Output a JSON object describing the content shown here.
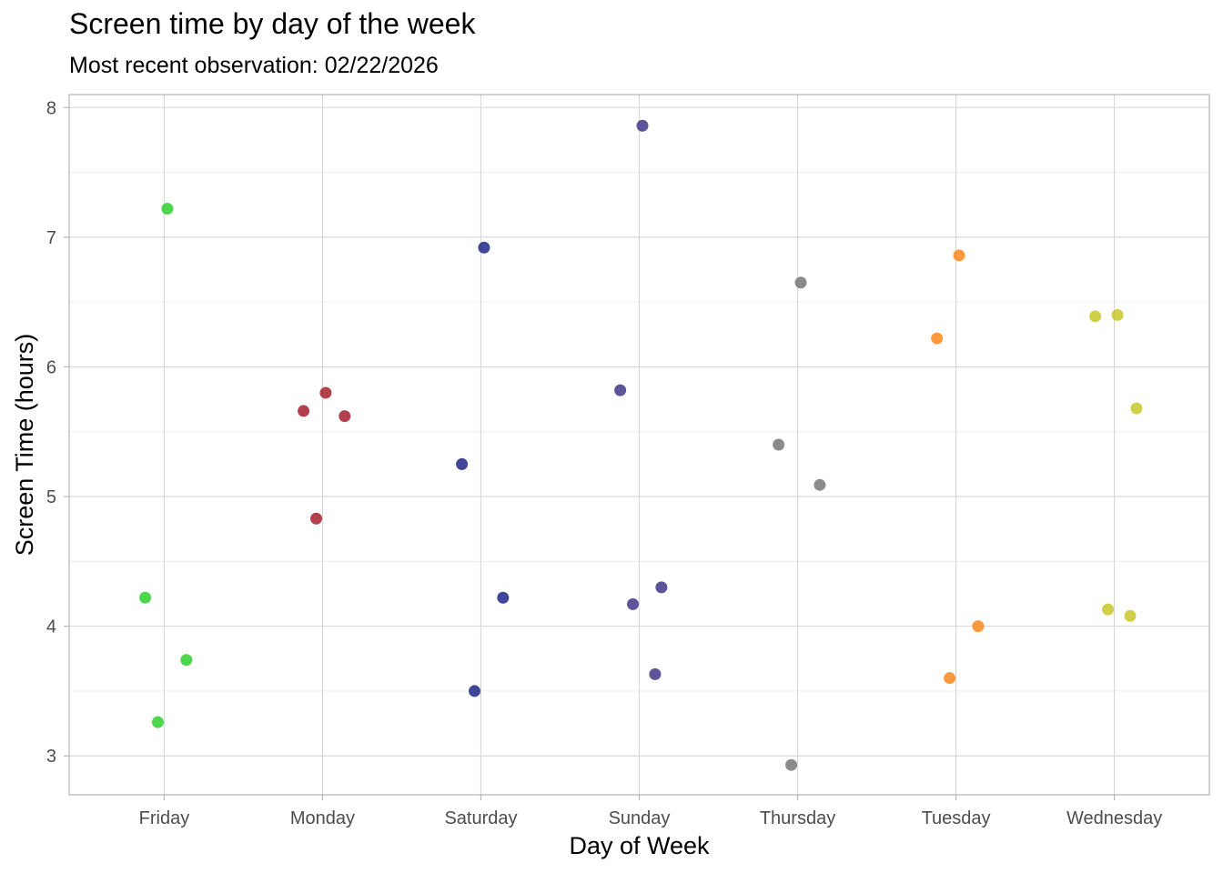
{
  "chart_data": {
    "type": "scatter",
    "title": "Screen time by day of the week",
    "subtitle": "Most recent observation: 02/22/2026",
    "xlabel": "Day of Week",
    "ylabel": "Screen Time (hours)",
    "categories": [
      "Friday",
      "Monday",
      "Saturday",
      "Sunday",
      "Thursday",
      "Tuesday",
      "Wednesday"
    ],
    "ylim": [
      2.7,
      8.1
    ],
    "yticks": [
      3,
      4,
      5,
      6,
      7,
      8
    ],
    "grid": true,
    "legend": "none",
    "series": [
      {
        "category": "Friday",
        "color": "#22cc22",
        "points": [
          {
            "x": "Friday",
            "y": 7.22
          },
          {
            "x": "Friday",
            "y": 4.22
          },
          {
            "x": "Friday",
            "y": 3.74
          },
          {
            "x": "Friday",
            "y": 3.26
          }
        ]
      },
      {
        "category": "Monday",
        "color": "#a01020",
        "points": [
          {
            "x": "Monday",
            "y": 5.8
          },
          {
            "x": "Monday",
            "y": 5.66
          },
          {
            "x": "Monday",
            "y": 5.62
          },
          {
            "x": "Monday",
            "y": 4.83
          }
        ]
      },
      {
        "category": "Saturday",
        "color": "#101880",
        "points": [
          {
            "x": "Saturday",
            "y": 6.92
          },
          {
            "x": "Saturday",
            "y": 5.25
          },
          {
            "x": "Saturday",
            "y": 4.22
          },
          {
            "x": "Saturday",
            "y": 3.5
          }
        ]
      },
      {
        "category": "Sunday",
        "color": "#352a80",
        "points": [
          {
            "x": "Sunday",
            "y": 7.86
          },
          {
            "x": "Sunday",
            "y": 5.82
          },
          {
            "x": "Sunday",
            "y": 4.3
          },
          {
            "x": "Sunday",
            "y": 4.17
          },
          {
            "x": "Sunday",
            "y": 3.63
          }
        ]
      },
      {
        "category": "Thursday",
        "color": "#6e6e6e",
        "points": [
          {
            "x": "Thursday",
            "y": 6.65
          },
          {
            "x": "Thursday",
            "y": 5.4
          },
          {
            "x": "Thursday",
            "y": 5.09
          },
          {
            "x": "Thursday",
            "y": 2.93
          }
        ]
      },
      {
        "category": "Tuesday",
        "color": "#ff7f0e",
        "points": [
          {
            "x": "Tuesday",
            "y": 6.86
          },
          {
            "x": "Tuesday",
            "y": 6.22
          },
          {
            "x": "Tuesday",
            "y": 4.0
          },
          {
            "x": "Tuesday",
            "y": 3.6
          }
        ]
      },
      {
        "category": "Wednesday",
        "color": "#c4c41a",
        "points": [
          {
            "x": "Wednesday",
            "y": 6.4
          },
          {
            "x": "Wednesday",
            "y": 6.39
          },
          {
            "x": "Wednesday",
            "y": 5.68
          },
          {
            "x": "Wednesday",
            "y": 4.13
          },
          {
            "x": "Wednesday",
            "y": 4.08
          }
        ]
      }
    ]
  }
}
